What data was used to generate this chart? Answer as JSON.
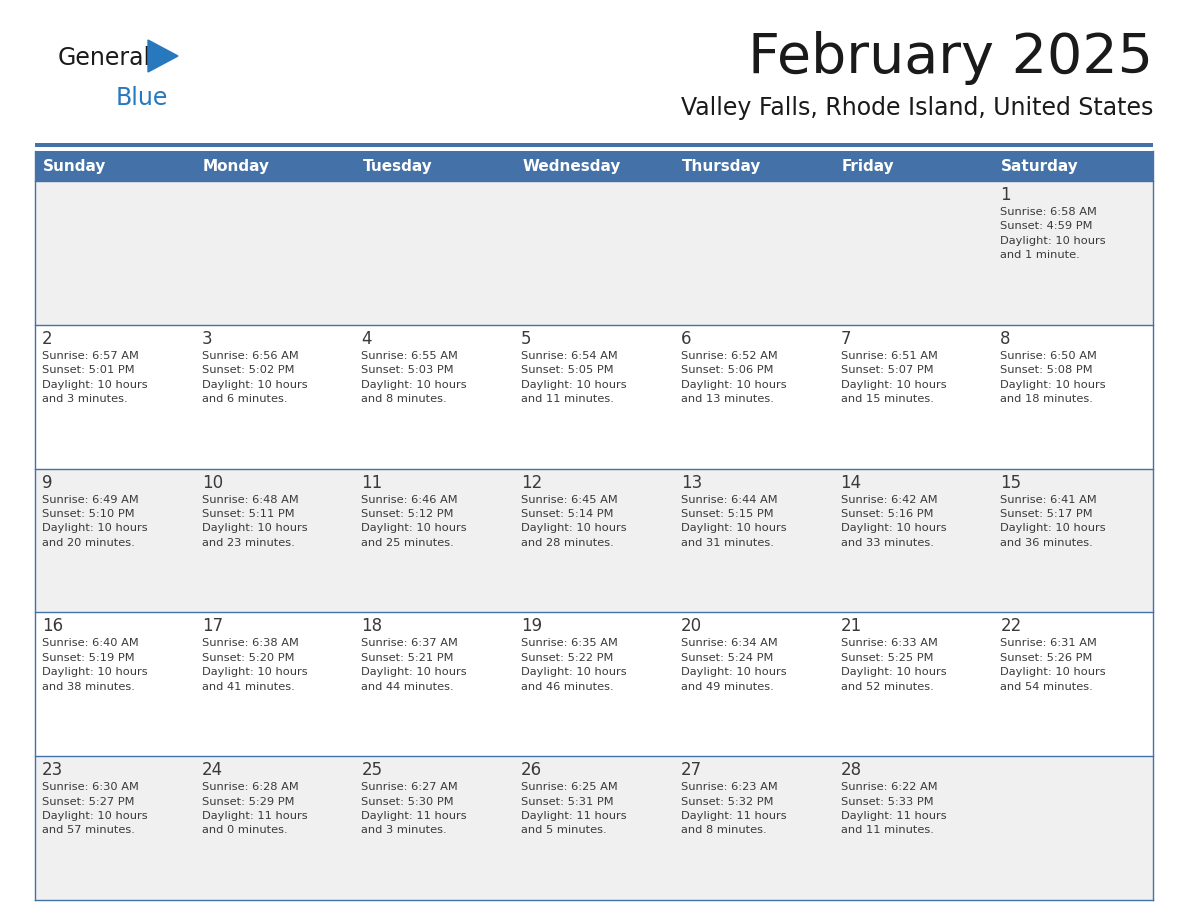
{
  "title": "February 2025",
  "subtitle": "Valley Falls, Rhode Island, United States",
  "header_bg_color": "#4472A8",
  "header_text_color": "#FFFFFF",
  "row_bg_even": "#F0F0F0",
  "row_bg_odd": "#FFFFFF",
  "day_number_color": "#3A3A3A",
  "cell_text_color": "#3A3A3A",
  "divider_color": "#4472A8",
  "days_of_week": [
    "Sunday",
    "Monday",
    "Tuesday",
    "Wednesday",
    "Thursday",
    "Friday",
    "Saturday"
  ],
  "weeks": [
    [
      {
        "day": "",
        "info": ""
      },
      {
        "day": "",
        "info": ""
      },
      {
        "day": "",
        "info": ""
      },
      {
        "day": "",
        "info": ""
      },
      {
        "day": "",
        "info": ""
      },
      {
        "day": "",
        "info": ""
      },
      {
        "day": "1",
        "info": "Sunrise: 6:58 AM\nSunset: 4:59 PM\nDaylight: 10 hours\nand 1 minute."
      }
    ],
    [
      {
        "day": "2",
        "info": "Sunrise: 6:57 AM\nSunset: 5:01 PM\nDaylight: 10 hours\nand 3 minutes."
      },
      {
        "day": "3",
        "info": "Sunrise: 6:56 AM\nSunset: 5:02 PM\nDaylight: 10 hours\nand 6 minutes."
      },
      {
        "day": "4",
        "info": "Sunrise: 6:55 AM\nSunset: 5:03 PM\nDaylight: 10 hours\nand 8 minutes."
      },
      {
        "day": "5",
        "info": "Sunrise: 6:54 AM\nSunset: 5:05 PM\nDaylight: 10 hours\nand 11 minutes."
      },
      {
        "day": "6",
        "info": "Sunrise: 6:52 AM\nSunset: 5:06 PM\nDaylight: 10 hours\nand 13 minutes."
      },
      {
        "day": "7",
        "info": "Sunrise: 6:51 AM\nSunset: 5:07 PM\nDaylight: 10 hours\nand 15 minutes."
      },
      {
        "day": "8",
        "info": "Sunrise: 6:50 AM\nSunset: 5:08 PM\nDaylight: 10 hours\nand 18 minutes."
      }
    ],
    [
      {
        "day": "9",
        "info": "Sunrise: 6:49 AM\nSunset: 5:10 PM\nDaylight: 10 hours\nand 20 minutes."
      },
      {
        "day": "10",
        "info": "Sunrise: 6:48 AM\nSunset: 5:11 PM\nDaylight: 10 hours\nand 23 minutes."
      },
      {
        "day": "11",
        "info": "Sunrise: 6:46 AM\nSunset: 5:12 PM\nDaylight: 10 hours\nand 25 minutes."
      },
      {
        "day": "12",
        "info": "Sunrise: 6:45 AM\nSunset: 5:14 PM\nDaylight: 10 hours\nand 28 minutes."
      },
      {
        "day": "13",
        "info": "Sunrise: 6:44 AM\nSunset: 5:15 PM\nDaylight: 10 hours\nand 31 minutes."
      },
      {
        "day": "14",
        "info": "Sunrise: 6:42 AM\nSunset: 5:16 PM\nDaylight: 10 hours\nand 33 minutes."
      },
      {
        "day": "15",
        "info": "Sunrise: 6:41 AM\nSunset: 5:17 PM\nDaylight: 10 hours\nand 36 minutes."
      }
    ],
    [
      {
        "day": "16",
        "info": "Sunrise: 6:40 AM\nSunset: 5:19 PM\nDaylight: 10 hours\nand 38 minutes."
      },
      {
        "day": "17",
        "info": "Sunrise: 6:38 AM\nSunset: 5:20 PM\nDaylight: 10 hours\nand 41 minutes."
      },
      {
        "day": "18",
        "info": "Sunrise: 6:37 AM\nSunset: 5:21 PM\nDaylight: 10 hours\nand 44 minutes."
      },
      {
        "day": "19",
        "info": "Sunrise: 6:35 AM\nSunset: 5:22 PM\nDaylight: 10 hours\nand 46 minutes."
      },
      {
        "day": "20",
        "info": "Sunrise: 6:34 AM\nSunset: 5:24 PM\nDaylight: 10 hours\nand 49 minutes."
      },
      {
        "day": "21",
        "info": "Sunrise: 6:33 AM\nSunset: 5:25 PM\nDaylight: 10 hours\nand 52 minutes."
      },
      {
        "day": "22",
        "info": "Sunrise: 6:31 AM\nSunset: 5:26 PM\nDaylight: 10 hours\nand 54 minutes."
      }
    ],
    [
      {
        "day": "23",
        "info": "Sunrise: 6:30 AM\nSunset: 5:27 PM\nDaylight: 10 hours\nand 57 minutes."
      },
      {
        "day": "24",
        "info": "Sunrise: 6:28 AM\nSunset: 5:29 PM\nDaylight: 11 hours\nand 0 minutes."
      },
      {
        "day": "25",
        "info": "Sunrise: 6:27 AM\nSunset: 5:30 PM\nDaylight: 11 hours\nand 3 minutes."
      },
      {
        "day": "26",
        "info": "Sunrise: 6:25 AM\nSunset: 5:31 PM\nDaylight: 11 hours\nand 5 minutes."
      },
      {
        "day": "27",
        "info": "Sunrise: 6:23 AM\nSunset: 5:32 PM\nDaylight: 11 hours\nand 8 minutes."
      },
      {
        "day": "28",
        "info": "Sunrise: 6:22 AM\nSunset: 5:33 PM\nDaylight: 11 hours\nand 11 minutes."
      },
      {
        "day": "",
        "info": ""
      }
    ]
  ],
  "logo_general_color": "#1A1A1A",
  "logo_blue_color": "#2878BE",
  "logo_triangle_color": "#2878BE",
  "fig_width": 11.88,
  "fig_height": 9.18,
  "dpi": 100
}
